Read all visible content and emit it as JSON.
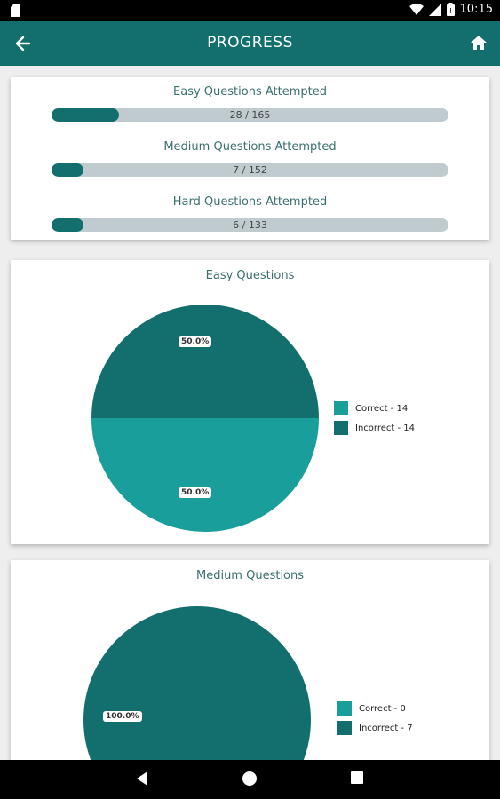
{
  "status_bar": {
    "time": "10:15"
  },
  "app_bar": {
    "title": "PROGRESS",
    "back_icon": "arrow-left-icon",
    "home_icon": "home-icon"
  },
  "colors": {
    "primary": "#126f6d",
    "correct": "#1a9e9c",
    "incorrect": "#126f6d",
    "track": "#bfcbce"
  },
  "progress": {
    "items": [
      {
        "label": "Easy Questions Attempted",
        "text": "28 / 165",
        "fraction": 0.17
      },
      {
        "label": "Medium Questions Attempted",
        "text": "7 / 152",
        "fraction": 0.046
      },
      {
        "label": "Hard Questions Attempted",
        "text": "6 / 133",
        "fraction": 0.045
      }
    ]
  },
  "chart_data": [
    {
      "type": "pie",
      "title": "Easy Questions",
      "slices": [
        {
          "name": "Correct - 14",
          "value": 14,
          "label": "50.0%"
        },
        {
          "name": "Incorrect - 14",
          "value": 14,
          "label": "50.0%"
        }
      ],
      "legend": "right"
    },
    {
      "type": "pie",
      "title": "Medium Questions",
      "slices": [
        {
          "name": "Correct - 0",
          "value": 0,
          "label": ""
        },
        {
          "name": "Incorrect - 7",
          "value": 7,
          "label": "100.0%"
        }
      ],
      "legend": "right"
    }
  ]
}
